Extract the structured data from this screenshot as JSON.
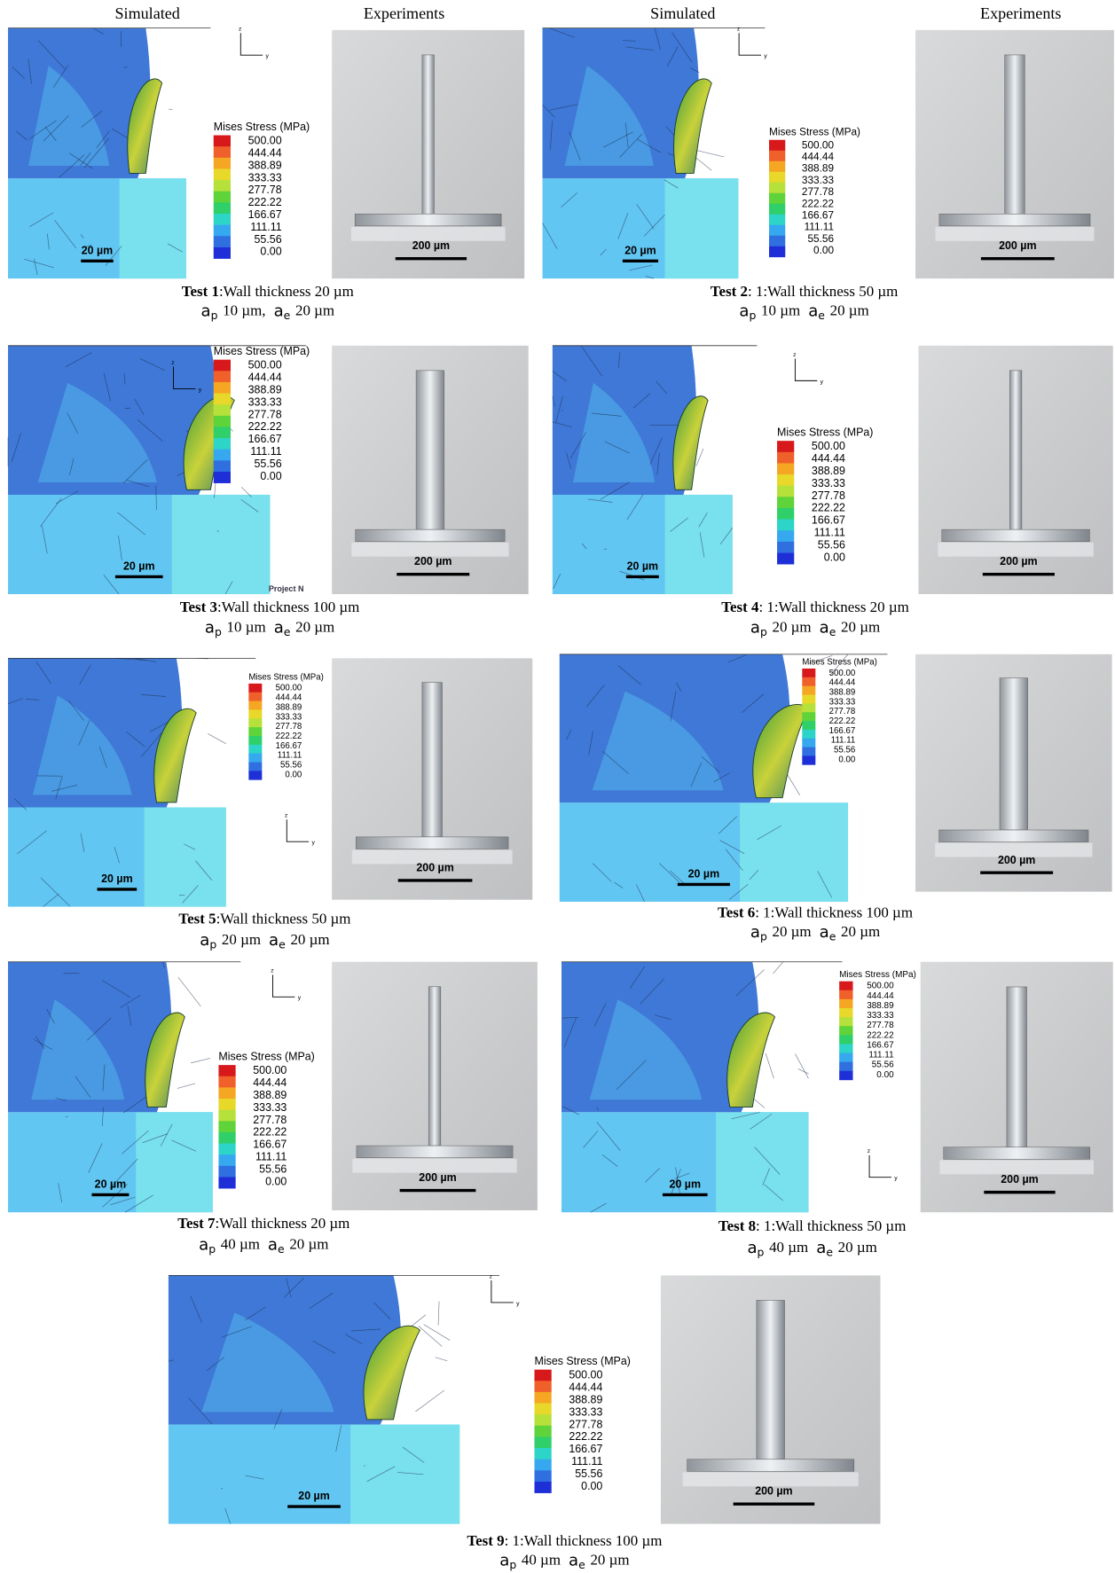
{
  "column_headers": [
    "Simulated",
    "Experiments",
    "Simulated",
    "Experiments"
  ],
  "legend": {
    "title": "Mises Stress (MPa)",
    "levels": [
      "500.00",
      "444.44",
      "388.89",
      "333.33",
      "277.78",
      "222.22",
      "166.67",
      "111.11",
      "55.56",
      "0.00"
    ]
  },
  "sim_scale_label": "20 µm",
  "exp_scale_label": "200 µm",
  "axis_labels": [
    "z",
    "y"
  ],
  "project_label": "Project N",
  "param_symbols": {
    "base": "a",
    "p": "p",
    "e": "e"
  },
  "tests": [
    {
      "label": "Test 1",
      "caption": ":Wall thickness 20 µm",
      "a_p": "10 µm,",
      "a_e": "20 µm"
    },
    {
      "label": "Test 2",
      "caption": ": 1:Wall thickness 50 µm",
      "a_p": "10 µm",
      "a_e": "20 µm"
    },
    {
      "label": "Test 3",
      "caption": ":Wall thickness 100 µm",
      "a_p": "10 µm",
      "a_e": "20 µm"
    },
    {
      "label": "Test 4",
      "caption": ": 1:Wall thickness 20 µm",
      "a_p": "20 µm",
      "a_e": "20 µm"
    },
    {
      "label": "Test 5",
      "caption": ":Wall thickness 50 µm",
      "a_p": "20 µm",
      "a_e": "20 µm"
    },
    {
      "label": "Test 6",
      "caption": ": 1:Wall thickness 100 µm",
      "a_p": "20 µm",
      "a_e": "20 µm"
    },
    {
      "label": "Test 7",
      "caption": ":Wall thickness 20 µm",
      "a_p": "40 µm",
      "a_e": "20 µm"
    },
    {
      "label": "Test 8",
      "caption": ": 1:Wall thickness 50 µm",
      "a_p": "40 µm",
      "a_e": "20 µm"
    },
    {
      "label": "Test 9",
      "caption": ": 1:Wall thickness 100 µm",
      "a_p": "40 µm",
      "a_e": "20 µm"
    }
  ]
}
